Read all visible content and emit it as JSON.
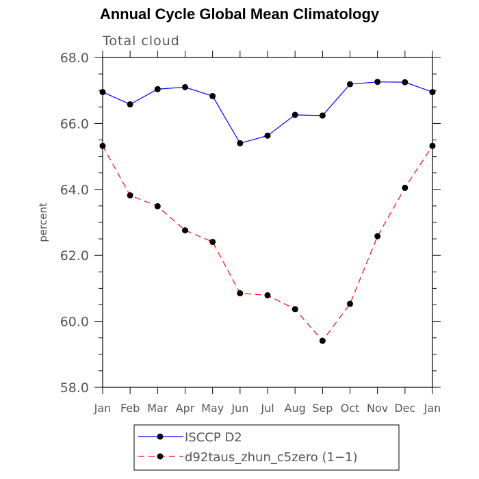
{
  "title": "Annual Cycle Global Mean Climatology",
  "subtitle": "Total cloud",
  "chart_data": {
    "type": "line",
    "title": "Annual Cycle Global Mean Climatology",
    "subtitle": "Total cloud",
    "xlabel": "",
    "ylabel": "percent",
    "categories": [
      "Jan",
      "Feb",
      "Mar",
      "Apr",
      "May",
      "Jun",
      "Jul",
      "Aug",
      "Sep",
      "Oct",
      "Nov",
      "Dec",
      "Jan"
    ],
    "ylim": [
      58.0,
      68.0
    ],
    "yticks": [
      "58.0",
      "60.0",
      "62.0",
      "64.0",
      "66.0",
      "68.0"
    ],
    "grid": false,
    "legend_position": "bottom",
    "series": [
      {
        "name": "ISCCP D2",
        "color": "#0000ff",
        "line_style": "solid",
        "marker": "filled-circle",
        "values": [
          66.95,
          66.58,
          67.04,
          67.1,
          66.83,
          65.4,
          65.63,
          66.26,
          66.24,
          67.19,
          67.26,
          67.25,
          66.95
        ]
      },
      {
        "name": "d92taus_zhun_c5zero (1−1)",
        "color": "#ff0000",
        "line_style": "dashed",
        "marker": "filled-circle",
        "values": [
          65.32,
          63.82,
          63.49,
          62.76,
          62.41,
          60.85,
          60.79,
          60.37,
          59.41,
          60.53,
          62.58,
          64.05,
          65.32
        ]
      }
    ]
  }
}
